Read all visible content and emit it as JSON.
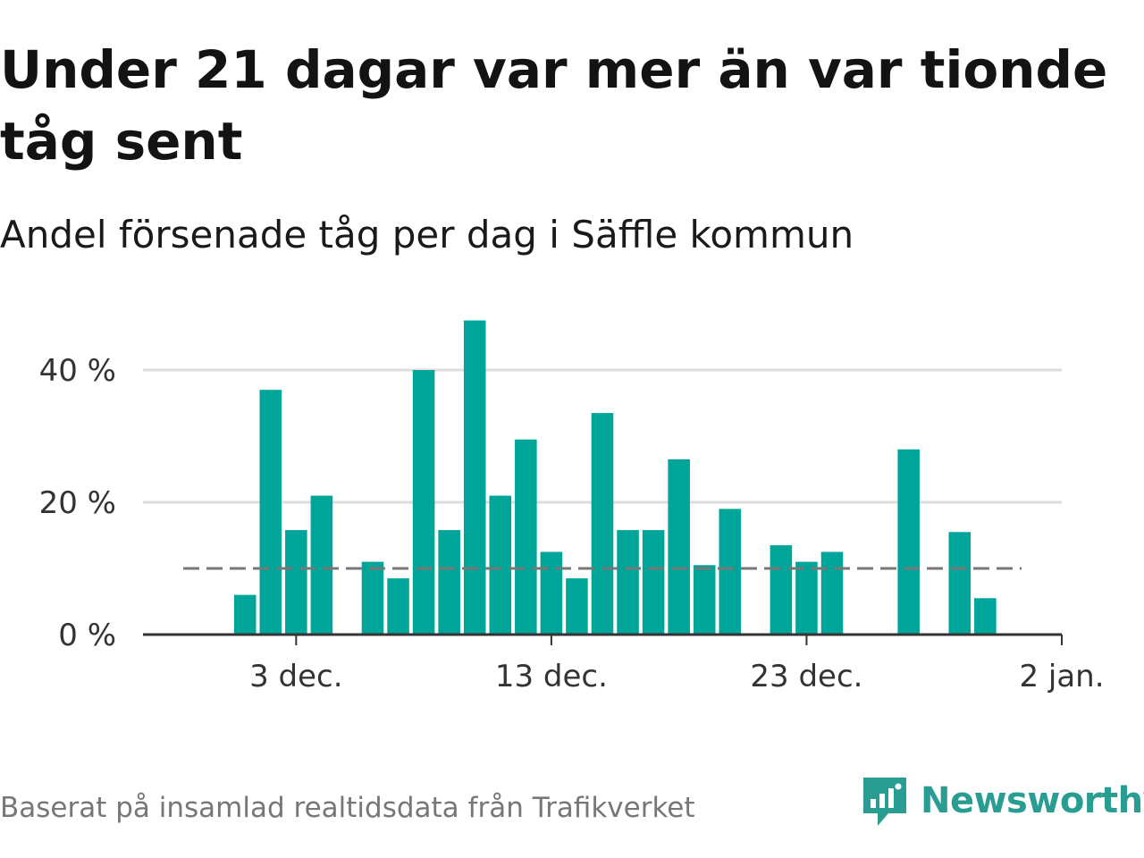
{
  "title": "Under 21 dagar var mer än var tionde tåg sent",
  "subtitle": "Andel försenade tåg per dag i Säffle kommun",
  "source": "Baserat på insamlad realtidsdata från Trafikverket",
  "brand": {
    "name": "Newsworthy",
    "icon": "newsworthy-logo-icon",
    "color": "#2a9d92"
  },
  "colors": {
    "bar": "#00a59a",
    "grid": "#dddddd",
    "axis": "#333333",
    "threshold": "#777777"
  },
  "chart_data": {
    "type": "bar",
    "x_type": "date",
    "x": [
      "2023-12-01",
      "2023-12-02",
      "2023-12-03",
      "2023-12-04",
      "2023-12-05",
      "2023-12-06",
      "2023-12-07",
      "2023-12-08",
      "2023-12-09",
      "2023-12-10",
      "2023-12-11",
      "2023-12-12",
      "2023-12-13",
      "2023-12-14",
      "2023-12-15",
      "2023-12-16",
      "2023-12-17",
      "2023-12-18",
      "2023-12-19",
      "2023-12-20",
      "2023-12-21",
      "2023-12-22",
      "2023-12-23",
      "2023-12-24",
      "2023-12-25",
      "2023-12-26",
      "2023-12-27",
      "2023-12-28",
      "2023-12-29",
      "2023-12-30",
      "2023-12-31"
    ],
    "values": [
      6,
      37,
      15.8,
      21,
      null,
      11,
      8.5,
      40,
      15.8,
      47.5,
      21,
      29.5,
      12.5,
      8.5,
      33.5,
      15.8,
      15.8,
      26.5,
      10.5,
      19,
      null,
      13.5,
      11,
      12.5,
      null,
      null,
      28,
      null,
      15.5,
      5.5,
      null
    ],
    "unit": "%",
    "ylim": [
      0,
      50
    ],
    "yticks": [
      0,
      20,
      40
    ],
    "ytick_labels": [
      "0 %",
      "20 %",
      "40 %"
    ],
    "xticks": [
      "2023-12-03",
      "2023-12-13",
      "2023-12-23",
      "2024-01-02"
    ],
    "xtick_labels": [
      "3 dec.",
      "13 dec.",
      "23 dec.",
      "2 jan."
    ],
    "xlim": [
      "2023-11-27",
      "2024-01-02"
    ],
    "threshold": 10,
    "threshold_style": "dashed",
    "grid": true
  }
}
